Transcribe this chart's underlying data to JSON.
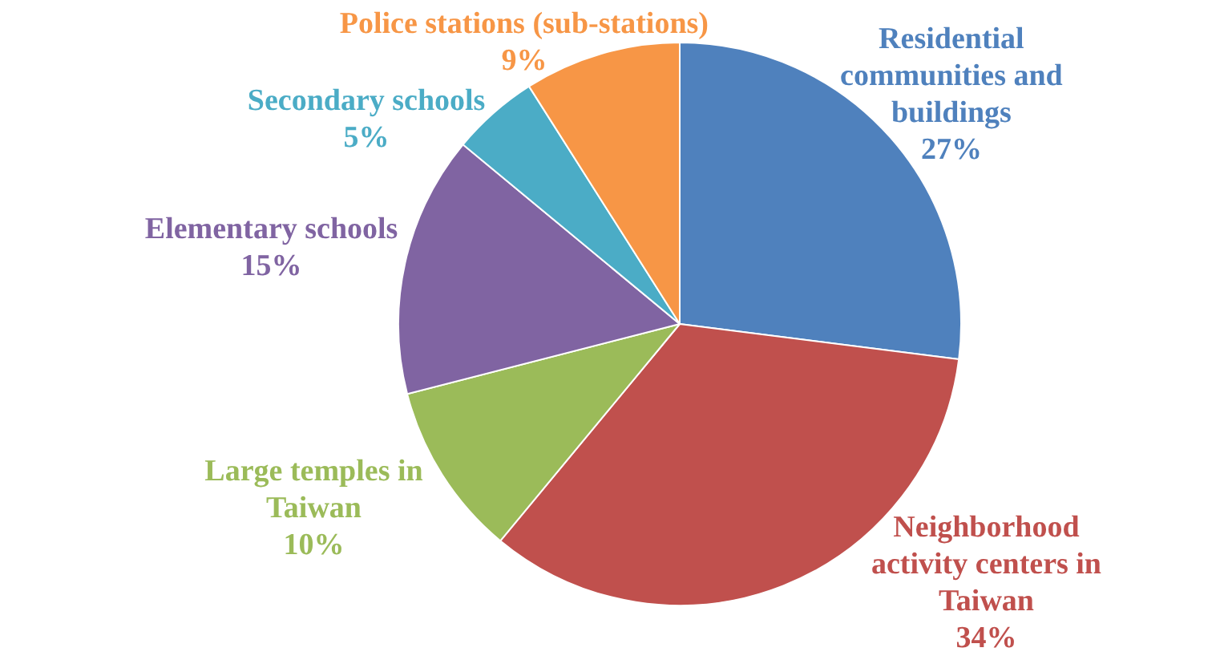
{
  "chart_data": {
    "type": "pie",
    "categories": [
      "Residential communities and buildings",
      "Neighborhood activity centers in Taiwan",
      "Large temples in Taiwan",
      "Elementary schools",
      "Secondary schools",
      "Police stations (sub-stations)"
    ],
    "values": [
      27,
      34,
      10,
      15,
      5,
      9
    ],
    "colors": [
      "#4f81bd",
      "#c0504d",
      "#9bbb59",
      "#8064a2",
      "#4bacc6",
      "#f79646"
    ],
    "value_labels": [
      "27%",
      "34%",
      "10%",
      "15%",
      "5%",
      "9%"
    ],
    "legend": false
  }
}
